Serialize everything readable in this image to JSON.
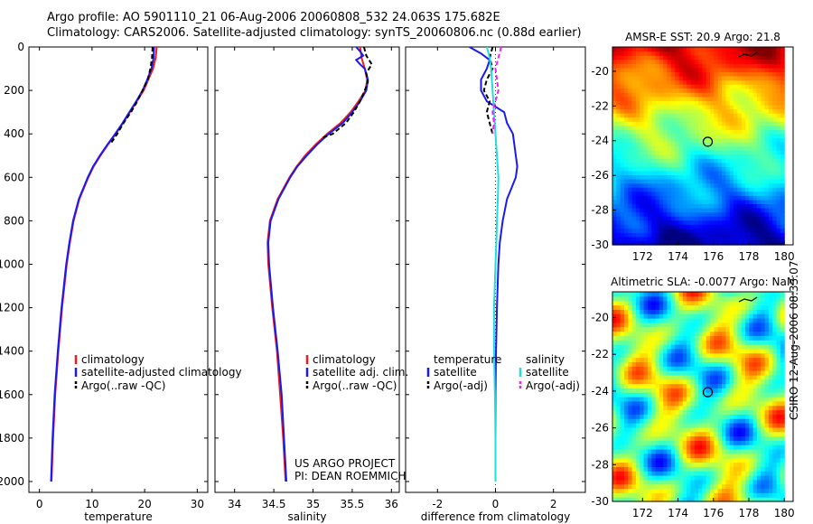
{
  "header": {
    "title_line1": "Argo profile: AO 5901110_21 06-Aug-2006 20060808_532 24.063S 175.682E",
    "title_line2": "Climatology: CARS2006. Satellite-adjusted climatology: synTS_20060806.nc (0.88d earlier)"
  },
  "credits": {
    "project": "US ARGO PROJECT",
    "pi": "PI: DEAN ROEMMICH",
    "side_stamp": "CSIRO 12-Aug-2006 08:33:07"
  },
  "colors": {
    "climatology": "#ee1c1c",
    "satellite": "#1a1aee",
    "argo": "#000000",
    "salinity_satellite": "#22dddd",
    "salinity_argo": "#ee22ee"
  },
  "chart_data": [
    {
      "type": "line",
      "xlabel": "temperature",
      "ylabel": "",
      "xlim": [
        -2,
        32
      ],
      "ylim": [
        2050,
        0
      ],
      "xticks": [
        0,
        10,
        20,
        30
      ],
      "yticks": [
        0,
        200,
        400,
        600,
        800,
        1000,
        1200,
        1400,
        1600,
        1800,
        2000
      ],
      "legend": [
        "climatology",
        "satellite-adjusted climatology",
        "Argo(..raw -QC)"
      ],
      "series": [
        {
          "name": "climatology",
          "depth": [
            0,
            50,
            100,
            150,
            200,
            250,
            300,
            350,
            400,
            450,
            500,
            550,
            600,
            700,
            800,
            900,
            1000,
            1200,
            1400,
            1600,
            1800,
            2000
          ],
          "values": [
            22.3,
            22.1,
            21.6,
            20.7,
            19.8,
            18.5,
            17.2,
            15.9,
            14.5,
            13.0,
            11.6,
            10.3,
            9.3,
            7.6,
            6.5,
            5.8,
            5.2,
            4.3,
            3.6,
            3.0,
            2.6,
            2.3
          ]
        },
        {
          "name": "satellite-adjusted climatology",
          "depth": [
            0,
            50,
            100,
            150,
            200,
            250,
            300,
            350,
            400,
            450,
            500,
            550,
            600,
            700,
            800,
            900,
            1000,
            1200,
            1400,
            1600,
            1800,
            2000
          ],
          "values": [
            21.8,
            21.7,
            21.3,
            20.5,
            19.6,
            18.4,
            17.1,
            15.8,
            14.4,
            12.9,
            11.5,
            10.2,
            9.2,
            7.5,
            6.4,
            5.7,
            5.1,
            4.2,
            3.5,
            2.9,
            2.5,
            2.2
          ]
        },
        {
          "name": "Argo(..raw -QC)",
          "depth": [
            0,
            50,
            100,
            150,
            200,
            250,
            300,
            350,
            400,
            450
          ],
          "values": [
            21.5,
            21.4,
            21.1,
            20.6,
            19.6,
            18.6,
            17.4,
            16.0,
            14.8,
            13.4
          ]
        }
      ]
    },
    {
      "type": "line",
      "xlabel": "salinity",
      "ylabel": "",
      "xlim": [
        33.75,
        36.1
      ],
      "ylim": [
        2050,
        0
      ],
      "xticks": [
        34,
        34.5,
        35,
        35.5,
        36
      ],
      "legend": [
        "climatology",
        "satellite adj. clim.",
        "Argo(..raw -QC)"
      ],
      "series": [
        {
          "name": "climatology",
          "depth": [
            0,
            50,
            100,
            150,
            200,
            250,
            300,
            350,
            400,
            450,
            500,
            550,
            600,
            700,
            800,
            900,
            1000,
            1200,
            1400,
            1600,
            1800,
            2000
          ],
          "values": [
            35.6,
            35.62,
            35.66,
            35.69,
            35.67,
            35.58,
            35.48,
            35.35,
            35.18,
            35.03,
            34.9,
            34.79,
            34.7,
            34.55,
            34.45,
            34.42,
            34.43,
            34.48,
            34.54,
            34.58,
            34.62,
            34.65
          ]
        },
        {
          "name": "satellite adj. clim.",
          "depth": [
            0,
            20,
            40,
            60,
            80,
            100,
            150,
            200,
            250,
            300,
            350,
            400,
            450,
            500,
            550,
            600,
            700,
            800,
            900,
            1000,
            1200,
            1400,
            1600,
            1800,
            2000
          ],
          "values": [
            35.55,
            35.6,
            35.64,
            35.55,
            35.6,
            35.66,
            35.7,
            35.68,
            35.6,
            35.5,
            35.38,
            35.2,
            35.05,
            34.92,
            34.8,
            34.71,
            34.56,
            34.46,
            34.43,
            34.44,
            34.49,
            34.55,
            34.6,
            34.63,
            34.66
          ]
        },
        {
          "name": "Argo(..raw -QC)",
          "depth": [
            0,
            40,
            80,
            120,
            160,
            200,
            250,
            300,
            350,
            400,
            420
          ],
          "values": [
            35.65,
            35.68,
            35.75,
            35.68,
            35.7,
            35.66,
            35.6,
            35.52,
            35.42,
            35.25,
            35.1
          ]
        }
      ]
    },
    {
      "type": "line",
      "xlabel": "difference from climatology",
      "ylabel": "",
      "xlim": [
        -3.1,
        3.1
      ],
      "ylim": [
        2050,
        0
      ],
      "xticks": [
        -2,
        0,
        2
      ],
      "legend": [
        "temperature",
        "satellite",
        "Argo(-adj)",
        "salinity",
        "satellite",
        "Argo(-adj)"
      ],
      "series": [
        {
          "name": "temperature satellite",
          "depth": [
            0,
            30,
            60,
            100,
            150,
            200,
            250,
            300,
            350,
            400,
            450,
            500,
            550,
            600,
            650,
            700,
            800,
            900,
            1000,
            1200,
            1400,
            1600,
            1800,
            2000
          ],
          "values": [
            -0.9,
            -0.5,
            -0.2,
            -0.3,
            -0.5,
            -0.5,
            -0.3,
            0.3,
            0.4,
            0.6,
            0.65,
            0.7,
            0.75,
            0.7,
            0.55,
            0.4,
            0.25,
            0.15,
            0.1,
            0.05,
            0.02,
            0.0,
            0.0,
            0.0
          ]
        },
        {
          "name": "temperature Argo(-adj)",
          "depth": [
            0,
            50,
            100,
            150,
            200,
            250,
            300,
            350,
            400
          ],
          "values": [
            -0.1,
            -0.2,
            -0.1,
            -0.3,
            -0.4,
            -0.2,
            -0.3,
            -0.2,
            -0.1
          ]
        },
        {
          "name": "salinity satellite",
          "depth": [
            0,
            50,
            100,
            200,
            300,
            400,
            500,
            600,
            700,
            800,
            900,
            1000,
            1200,
            1400,
            1600,
            1800,
            2000
          ],
          "values": [
            -0.3,
            -0.2,
            -0.15,
            -0.1,
            -0.05,
            0.0,
            0.05,
            0.1,
            0.08,
            0.05,
            0.03,
            0.0,
            -0.05,
            -0.05,
            -0.02,
            0.0,
            0.0
          ]
        },
        {
          "name": "salinity Argo(-adj)",
          "depth": [
            0,
            50,
            100,
            150,
            200,
            250,
            300,
            350,
            400
          ],
          "values": [
            0.2,
            0.1,
            0.0,
            0.05,
            0.1,
            0.0,
            -0.1,
            -0.05,
            -0.1
          ]
        }
      ]
    },
    {
      "type": "heatmap",
      "title": "AMSR-E SST: 20.9 Argo: 21.8",
      "xlim": [
        170.3,
        180.5
      ],
      "ylim": [
        -30,
        -18.6
      ],
      "xticks": [
        172,
        174,
        176,
        178,
        180
      ],
      "yticks": [
        -20,
        -22,
        -24,
        -26,
        -28,
        -30
      ],
      "marker": {
        "lon": 175.68,
        "lat": -24.06
      },
      "value_range": [
        18.5,
        26.5
      ],
      "field": "sst"
    },
    {
      "type": "heatmap",
      "title": "Altimetric SLA: -0.0077 Argo: NaN",
      "xlim": [
        170.3,
        180.5
      ],
      "ylim": [
        -30,
        -18.6
      ],
      "xticks": [
        172,
        174,
        176,
        178,
        180
      ],
      "yticks": [
        -20,
        -22,
        -24,
        -26,
        -28,
        -30
      ],
      "marker": {
        "lon": 175.68,
        "lat": -24.06
      },
      "value_range": [
        -0.25,
        0.25
      ],
      "field": "sla"
    }
  ]
}
